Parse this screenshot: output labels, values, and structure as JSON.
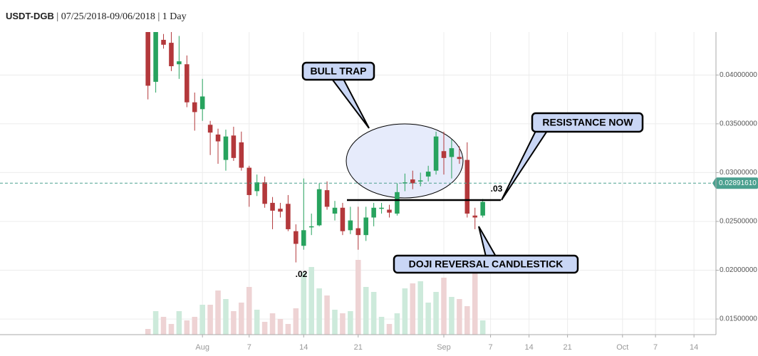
{
  "header": {
    "symbol": "USDT-DGB",
    "range": "07/25/2018-09/06/2018",
    "interval": "1 Day"
  },
  "chart_data": {
    "type": "candlestick",
    "x": [
      "2018-07-25",
      "2018-07-26",
      "2018-07-27",
      "2018-07-28",
      "2018-07-29",
      "2018-07-30",
      "2018-07-31",
      "2018-08-01",
      "2018-08-02",
      "2018-08-03",
      "2018-08-04",
      "2018-08-05",
      "2018-08-06",
      "2018-08-07",
      "2018-08-08",
      "2018-08-09",
      "2018-08-10",
      "2018-08-11",
      "2018-08-12",
      "2018-08-13",
      "2018-08-14",
      "2018-08-15",
      "2018-08-16",
      "2018-08-17",
      "2018-08-18",
      "2018-08-19",
      "2018-08-20",
      "2018-08-21",
      "2018-08-22",
      "2018-08-23",
      "2018-08-24",
      "2018-08-25",
      "2018-08-26",
      "2018-08-27",
      "2018-08-28",
      "2018-08-29",
      "2018-08-30",
      "2018-08-31",
      "2018-09-01",
      "2018-09-02",
      "2018-09-03",
      "2018-09-04",
      "2018-09-05",
      "2018-09-06"
    ],
    "open": [
      0.0448,
      0.0393,
      0.0436,
      0.0433,
      0.0411,
      0.0411,
      0.0372,
      0.0365,
      0.0349,
      0.0339,
      0.0313,
      0.0338,
      0.0331,
      0.0305,
      0.0281,
      0.029,
      0.0269,
      0.0263,
      0.0268,
      0.024,
      0.0225,
      0.0244,
      0.0246,
      0.0282,
      0.0258,
      0.0264,
      0.0241,
      0.0243,
      0.0236,
      0.0254,
      0.0263,
      0.0262,
      0.0258,
      0.0289,
      0.0293,
      0.0291,
      0.0296,
      0.0302,
      0.0322,
      0.0316,
      0.0316,
      0.0313,
      0.0256,
      0.0256
    ],
    "high": [
      0.0455,
      0.0452,
      0.0442,
      0.0444,
      0.044,
      0.042,
      0.0382,
      0.0396,
      0.0353,
      0.0345,
      0.0344,
      0.0347,
      0.0342,
      0.0307,
      0.0298,
      0.0296,
      0.0275,
      0.0269,
      0.0277,
      0.0247,
      0.0294,
      0.0258,
      0.0289,
      0.0291,
      0.0271,
      0.0269,
      0.0265,
      0.0265,
      0.0265,
      0.0269,
      0.0269,
      0.0267,
      0.0289,
      0.0299,
      0.0302,
      0.03,
      0.0307,
      0.0342,
      0.0342,
      0.0334,
      0.0327,
      0.0331,
      0.0264,
      0.0273
    ],
    "low": [
      0.0375,
      0.0382,
      0.0427,
      0.0404,
      0.0396,
      0.0367,
      0.0343,
      0.0353,
      0.0318,
      0.0309,
      0.0302,
      0.0312,
      0.0302,
      0.0265,
      0.0276,
      0.0264,
      0.0242,
      0.0254,
      0.024,
      0.0208,
      0.0221,
      0.0236,
      0.0245,
      0.0262,
      0.0251,
      0.0236,
      0.0237,
      0.0221,
      0.023,
      0.0245,
      0.0258,
      0.0254,
      0.0256,
      0.0281,
      0.0283,
      0.0286,
      0.0291,
      0.0298,
      0.0298,
      0.0294,
      0.0309,
      0.0254,
      0.0242,
      0.0254
    ],
    "close": [
      0.0389,
      0.0446,
      0.0431,
      0.0409,
      0.0414,
      0.0372,
      0.0362,
      0.0378,
      0.0341,
      0.0332,
      0.0337,
      0.0315,
      0.0305,
      0.0277,
      0.029,
      0.0268,
      0.0261,
      0.026,
      0.0242,
      0.0227,
      0.0241,
      0.0245,
      0.0283,
      0.0265,
      0.0264,
      0.024,
      0.0251,
      0.0236,
      0.0254,
      0.0264,
      0.0264,
      0.0259,
      0.028,
      0.029,
      0.0289,
      0.0292,
      0.0301,
      0.0337,
      0.0315,
      0.0325,
      0.0314,
      0.0258,
      0.0254,
      0.027
    ],
    "volume": [
      8,
      33,
      25,
      15,
      33,
      20,
      25,
      42,
      42,
      62,
      50,
      33,
      45,
      67,
      35,
      18,
      30,
      22,
      15,
      37,
      87,
      95,
      65,
      55,
      35,
      30,
      33,
      105,
      67,
      60,
      25,
      15,
      30,
      65,
      72,
      75,
      45,
      60,
      80,
      53,
      50,
      40,
      90,
      20
    ],
    "up_color": "#27a35e",
    "down_color": "#b3383b",
    "up_volume_color": "#cdeadb",
    "down_volume_color": "#eed3d4",
    "ylim": [
      0.0134,
      0.0444
    ],
    "yticks": [
      {
        "value": 0.015,
        "label": "0.01500000"
      },
      {
        "value": 0.02,
        "label": "0.02000000"
      },
      {
        "value": 0.025,
        "label": "0.02500000"
      },
      {
        "value": 0.03,
        "label": "0.03000000"
      },
      {
        "value": 0.035,
        "label": "0.03500000"
      },
      {
        "value": 0.04,
        "label": "0.04000000"
      }
    ],
    "xlim": [
      "2018-07-06",
      "2018-10-18"
    ],
    "xticks": [
      {
        "value": "2018-08-01",
        "label": "Aug"
      },
      {
        "value": "2018-08-07",
        "label": "7"
      },
      {
        "value": "2018-08-14",
        "label": "14"
      },
      {
        "value": "2018-08-21",
        "label": "21"
      },
      {
        "value": "2018-09-01",
        "label": "Sep"
      },
      {
        "value": "2018-09-07",
        "label": "7"
      },
      {
        "value": "2018-09-14",
        "label": "14"
      },
      {
        "value": "2018-09-21",
        "label": "21"
      },
      {
        "value": "2018-10-01",
        "label": "Oct"
      },
      {
        "value": "2018-10-07",
        "label": "7"
      },
      {
        "value": "2018-10-14",
        "label": "14"
      }
    ],
    "grid": true,
    "last_price": {
      "value": 0.0289161,
      "label": "0.02891610",
      "color": "#4aa08f"
    },
    "annotations": {
      "bull_trap": "BULL TRAP",
      "resistance": "RESISTANCE NOW",
      "doji": "DOJI REVERSAL CANDLESTICK",
      "high_mark": ".03",
      "low_mark": ".02"
    }
  }
}
